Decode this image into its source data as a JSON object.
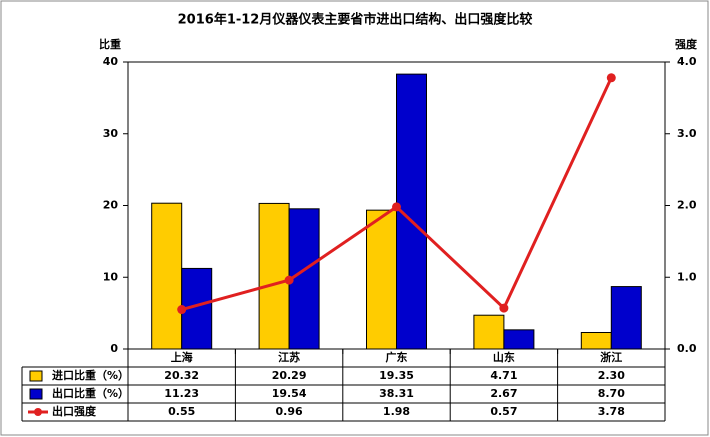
{
  "chart_data": {
    "type": "bar",
    "title": "2016年1-12月仪器仪表主要省市进出口结构、出口强度比较",
    "ylabel": "比重",
    "y2label": "强度",
    "categories": [
      "上海",
      "江苏",
      "广东",
      "山东",
      "浙江"
    ],
    "series": [
      {
        "name": "进口比重（%）",
        "type": "bar",
        "color": "#FFCC00",
        "values": [
          20.32,
          20.29,
          19.35,
          4.71,
          2.3
        ],
        "value_labels": [
          "20.32",
          "20.29",
          "19.35",
          "4.71",
          "2.30"
        ]
      },
      {
        "name": "出口比重（%）",
        "type": "bar",
        "color": "#0000CC",
        "values": [
          11.23,
          19.54,
          38.31,
          2.67,
          8.7
        ],
        "value_labels": [
          "11.23",
          "19.54",
          "38.31",
          "2.67",
          "8.70"
        ]
      },
      {
        "name": "出口强度",
        "type": "line",
        "axis": "y2",
        "color": "#E02020",
        "values": [
          0.55,
          0.96,
          1.98,
          0.57,
          3.78
        ],
        "value_labels": [
          "0.55",
          "0.96",
          "1.98",
          "0.57",
          "3.78"
        ]
      }
    ],
    "ylim": [
      0,
      40
    ],
    "yticks": [
      0,
      10,
      20,
      30,
      40
    ],
    "y2lim": [
      0,
      4
    ],
    "y2ticks": [
      {
        "value": 0,
        "label": "0.0"
      },
      {
        "value": 1,
        "label": "1.0"
      },
      {
        "value": 2,
        "label": "2.0"
      },
      {
        "value": 3,
        "label": "3.0"
      },
      {
        "value": 4,
        "label": "4.0"
      }
    ]
  }
}
